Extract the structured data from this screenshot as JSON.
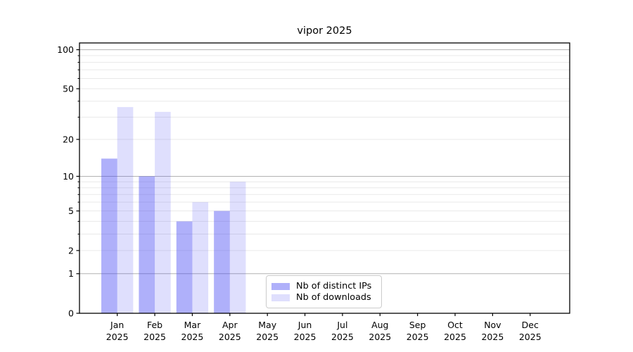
{
  "chart_data": {
    "type": "bar",
    "title": "vipor 2025",
    "categories": [
      "Jan",
      "Feb",
      "Mar",
      "Apr",
      "May",
      "Jun",
      "Jul",
      "Aug",
      "Sep",
      "Oct",
      "Nov",
      "Dec"
    ],
    "category_year": "2025",
    "series": [
      {
        "name": "Nb of distinct IPs",
        "values": [
          14,
          10,
          4,
          5,
          0,
          0,
          0,
          0,
          0,
          0,
          0,
          0
        ],
        "color": "#a9abf5",
        "fill": "rgba(64,66,242,0.42)"
      },
      {
        "name": "Nb of downloads",
        "values": [
          36,
          33,
          6,
          9,
          0,
          0,
          0,
          0,
          0,
          0,
          0,
          0
        ],
        "color": "#dcdefa",
        "fill": "rgba(64,66,242,0.17)"
      }
    ],
    "xlabel": "",
    "ylabel": "",
    "yscale": "log1p",
    "ylim": [
      0,
      111
    ],
    "yticks": [
      0,
      1,
      2,
      5,
      10,
      20,
      50,
      100
    ],
    "y_major_gridlines": [
      1,
      10,
      100
    ],
    "y_minor_gridlines": [
      2,
      3,
      4,
      5,
      6,
      7,
      8,
      9,
      20,
      30,
      40,
      50,
      60,
      70,
      80,
      90
    ],
    "grid": {
      "major_color": "#b3b3b3",
      "minor_color": "#e9e9e9"
    },
    "axis_color": "#000000",
    "text_color": "#000000",
    "legend": {
      "position": "lower center",
      "border_color": "#cccccc",
      "background": "#ffffff"
    }
  }
}
